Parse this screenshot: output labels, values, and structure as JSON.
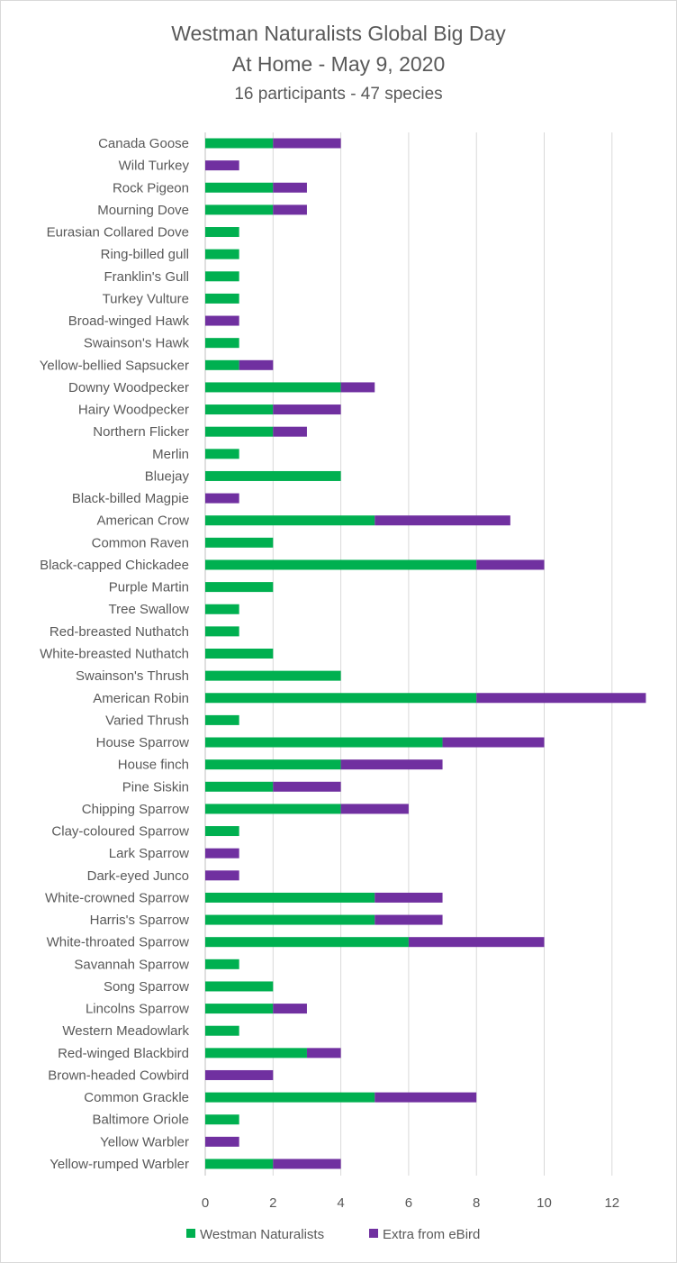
{
  "chart_data": {
    "type": "bar",
    "orientation": "horizontal",
    "stacked": true,
    "title": [
      "Westman Naturalists Global Big Day",
      "At Home - May 9, 2020",
      "16 participants - 47 species"
    ],
    "xlabel": "",
    "ylabel": "",
    "xlim": [
      0,
      13
    ],
    "x_ticks": [
      0,
      2,
      4,
      6,
      8,
      10,
      12
    ],
    "grid": "vertical",
    "legend_position": "bottom",
    "categories": [
      "Canada Goose",
      "Wild Turkey",
      "Rock Pigeon",
      "Mourning Dove",
      "Eurasian Collared Dove",
      "Ring-billed gull",
      "Franklin's Gull",
      "Turkey Vulture",
      "Broad-winged Hawk",
      "Swainson's Hawk",
      "Yellow-bellied Sapsucker",
      "Downy Woodpecker",
      "Hairy Woodpecker",
      "Northern Flicker",
      "Merlin",
      "Bluejay",
      "Black-billed Magpie",
      "American Crow",
      "Common Raven",
      "Black-capped Chickadee",
      "Purple Martin",
      "Tree Swallow",
      "Red-breasted Nuthatch",
      "White-breasted Nuthatch",
      "Swainson's Thrush",
      "American Robin",
      "Varied Thrush",
      "House Sparrow",
      "House finch",
      "Pine Siskin",
      "Chipping Sparrow",
      "Clay-coloured Sparrow",
      "Lark Sparrow",
      "Dark-eyed Junco",
      "White-crowned Sparrow",
      "Harris's Sparrow",
      "White-throated Sparrow",
      "Savannah Sparrow",
      "Song Sparrow",
      "Lincolns Sparrow",
      "Western Meadowlark",
      "Red-winged Blackbird",
      "Brown-headed Cowbird",
      "Common Grackle",
      "Baltimore Oriole",
      "Yellow Warbler",
      "Yellow-rumped Warbler"
    ],
    "series": [
      {
        "name": "Westman Naturalists",
        "color": "#00B050",
        "values": [
          2,
          0,
          2,
          2,
          1,
          1,
          1,
          1,
          0,
          1,
          1,
          4,
          2,
          2,
          1,
          4,
          0,
          5,
          2,
          8,
          2,
          1,
          1,
          2,
          4,
          8,
          1,
          7,
          4,
          2,
          4,
          1,
          0,
          0,
          5,
          5,
          6,
          1,
          2,
          2,
          1,
          3,
          0,
          5,
          1,
          0,
          2
        ]
      },
      {
        "name": "Extra from eBird",
        "color": "#7030A0",
        "values": [
          2,
          1,
          1,
          1,
          0,
          0,
          0,
          0,
          1,
          0,
          1,
          1,
          2,
          1,
          0,
          0,
          1,
          4,
          0,
          2,
          0,
          0,
          0,
          0,
          0,
          5,
          0,
          3,
          3,
          2,
          2,
          0,
          1,
          1,
          2,
          2,
          4,
          0,
          0,
          1,
          0,
          1,
          2,
          3,
          0,
          1,
          2
        ]
      }
    ]
  }
}
